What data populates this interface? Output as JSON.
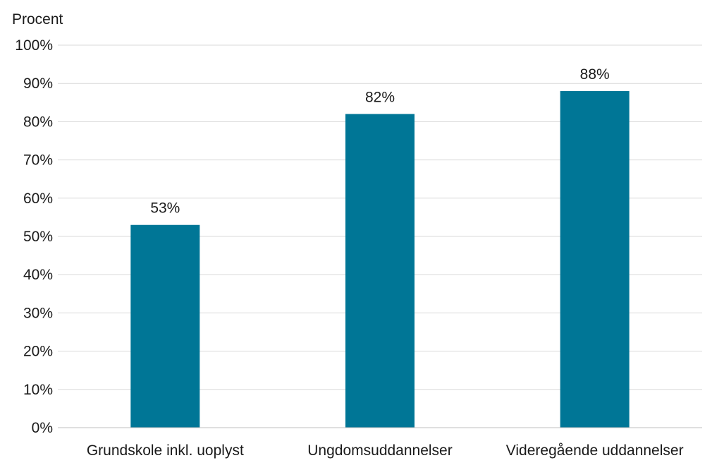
{
  "chart_data": {
    "type": "bar",
    "title": "",
    "xlabel": "",
    "ylabel": "Procent",
    "categories": [
      "Grundskole inkl. uoplyst",
      "Ungdomsuddannelser",
      "Videregående uddannelser"
    ],
    "values": [
      53,
      82,
      88
    ],
    "data_labels": [
      "53%",
      "82%",
      "88%"
    ],
    "ylim": [
      0,
      100
    ],
    "y_ticks": [
      0,
      10,
      20,
      30,
      40,
      50,
      60,
      70,
      80,
      90,
      100
    ],
    "y_tick_labels": [
      "0%",
      "10%",
      "20%",
      "30%",
      "40%",
      "50%",
      "60%",
      "70%",
      "80%",
      "90%",
      "100%"
    ],
    "grid": true,
    "legend": "none",
    "colors": {
      "bar": "#007696",
      "grid": "#d9d9d9",
      "axis": "#bfbfbf",
      "text": "#1a1a1a"
    }
  }
}
